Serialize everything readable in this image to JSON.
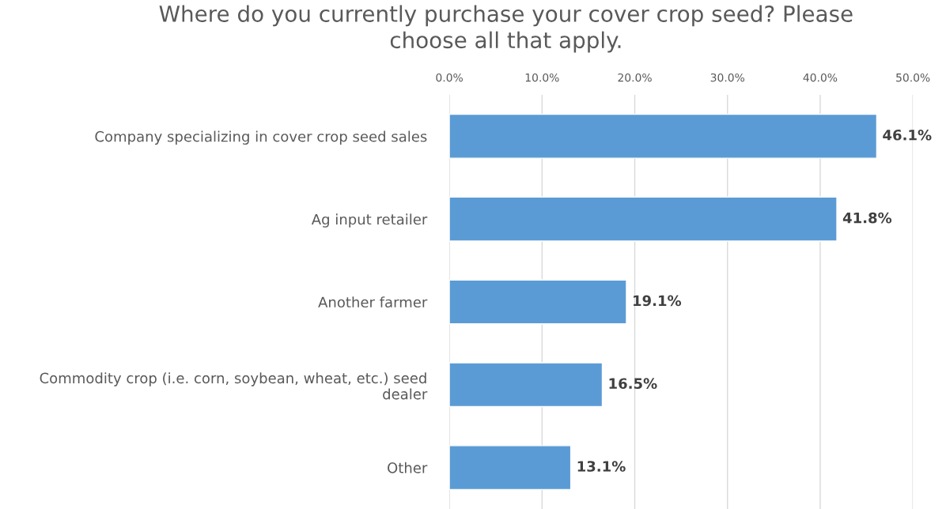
{
  "chart_data": {
    "type": "bar",
    "orientation": "horizontal",
    "title": "Where do you currently purchase your cover crop seed? Please choose all that apply.",
    "categories": [
      "Company specializing in cover crop seed sales",
      "Ag input retailer",
      "Another farmer",
      "Commodity crop (i.e. corn, soybean, wheat, etc.) seed dealer",
      "Other"
    ],
    "values": [
      46.1,
      41.8,
      19.1,
      16.5,
      13.1
    ],
    "value_labels": [
      "46.1%",
      "41.8%",
      "19.1%",
      "16.5%",
      "13.1%"
    ],
    "color": "#5b9bd5",
    "xlim": [
      0,
      50
    ],
    "xticks": [
      {
        "value": 0,
        "label": "0.0%"
      },
      {
        "value": 10,
        "label": "10.0%"
      },
      {
        "value": 20,
        "label": "20.0%"
      },
      {
        "value": 30,
        "label": "30.0%"
      },
      {
        "value": 40,
        "label": "40.0%"
      },
      {
        "value": 50,
        "label": "50.0%"
      }
    ],
    "grid": "x"
  }
}
